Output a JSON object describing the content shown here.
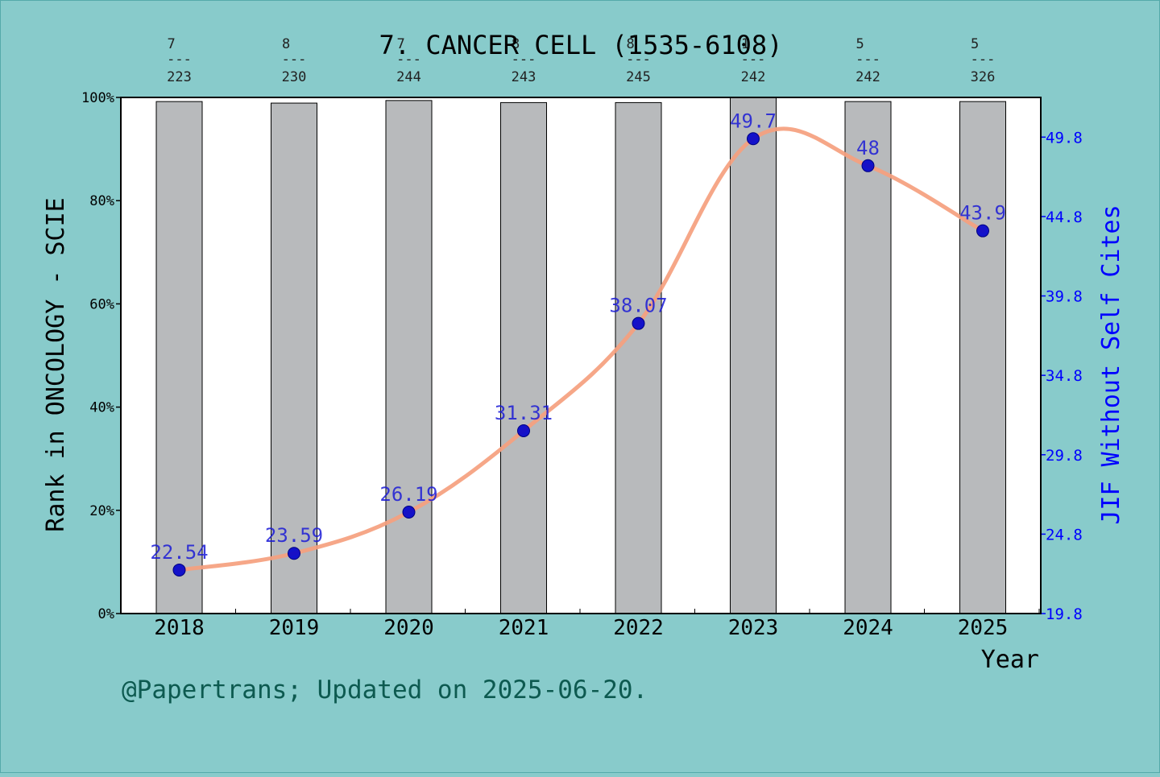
{
  "chart_data": {
    "type": "bar+line",
    "title": "7. CANCER CELL (1535-6108)",
    "xlabel": "Year",
    "ylabel_left": "Rank in ONCOLOGY - SCIE",
    "ylabel_right": "JIF Without Self Cites",
    "categories": [
      "2018",
      "2019",
      "2020",
      "2021",
      "2022",
      "2023",
      "2024",
      "2025"
    ],
    "bars": {
      "name": "Rank percentile",
      "values": [
        99.2,
        98.9,
        99.4,
        99.0,
        99.0,
        100.0,
        99.2,
        99.2
      ],
      "ylim": [
        0,
        100
      ],
      "yticks": [
        "0%",
        "20%",
        "40%",
        "60%",
        "80%",
        "100%"
      ],
      "color": "#b8babc"
    },
    "rank_labels": [
      {
        "rank": "7",
        "total": "223"
      },
      {
        "rank": "8",
        "total": "230"
      },
      {
        "rank": "7",
        "total": "244"
      },
      {
        "rank": "8",
        "total": "243"
      },
      {
        "rank": "8",
        "total": "245"
      },
      {
        "rank": "1",
        "total": "242"
      },
      {
        "rank": "5",
        "total": "242"
      },
      {
        "rank": "5",
        "total": "326"
      }
    ],
    "rank_separator": "---",
    "line": {
      "name": "JIF Without Self Cites",
      "values": [
        22.54,
        23.59,
        26.19,
        31.31,
        38.07,
        49.7,
        48,
        43.9
      ],
      "labels": [
        "22.54",
        "23.59",
        "26.19",
        "31.31",
        "38.07",
        "49.7",
        "48",
        "43.9"
      ],
      "ylim": [
        19.8,
        52.3
      ],
      "yticks": [
        19.8,
        24.8,
        29.8,
        34.8,
        39.8,
        44.8,
        49.8
      ],
      "ytick_labels": [
        "19.8",
        "24.8",
        "29.8",
        "34.8",
        "39.8",
        "44.8",
        "49.8"
      ],
      "color": "#f5a07e",
      "marker_color": "#0000cc"
    },
    "colors": {
      "background": "#88cbcb",
      "plot_bg": "#ffffff",
      "right_axis": "#0000ff",
      "footer": "#0d5a50"
    }
  },
  "footer": "@Papertrans; Updated on 2025-06-20."
}
